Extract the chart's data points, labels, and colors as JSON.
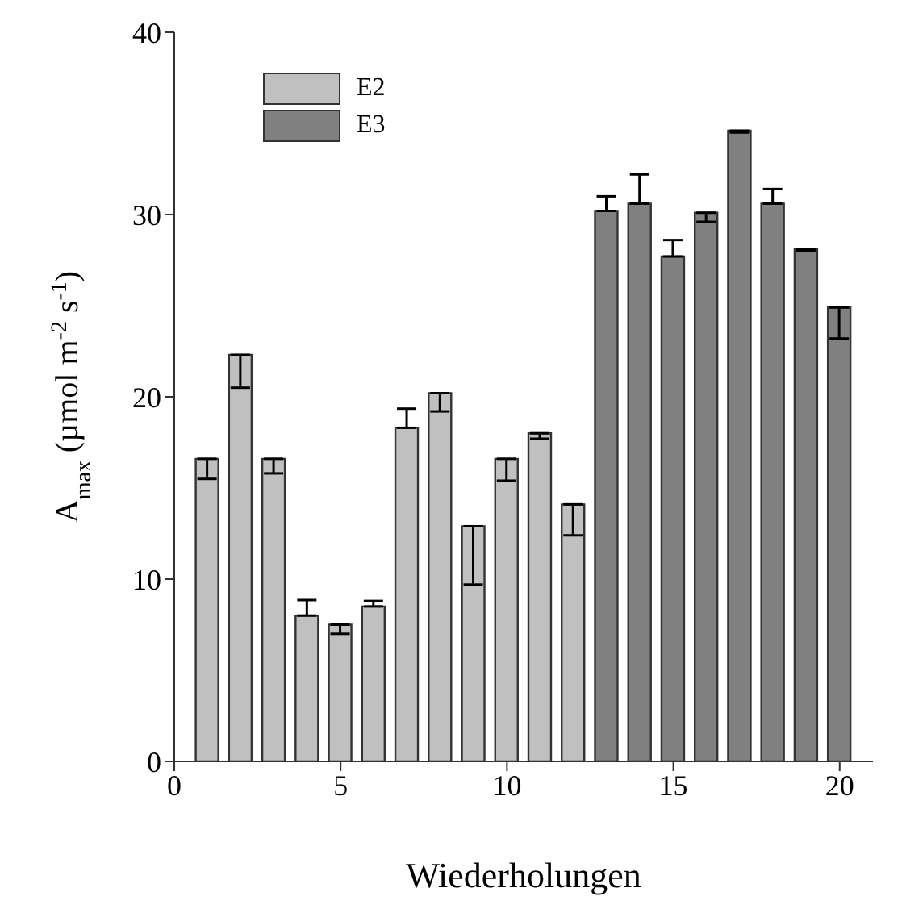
{
  "chart_data": {
    "type": "bar",
    "xlabel": "Wiederholungen",
    "ylabel": "A$_{max}$ (µmol m$^{-2}$ s$^{-1}$)",
    "xlim": [
      0,
      21
    ],
    "xticks": [
      0,
      5,
      10,
      15,
      20
    ],
    "ylim": [
      0,
      40
    ],
    "yticks": [
      0,
      10,
      20,
      30,
      40
    ],
    "legend": "top left",
    "series": [
      {
        "name": "E2",
        "color": "#c0c0c0",
        "x": [
          1,
          2,
          3,
          4,
          5,
          6,
          7,
          8,
          9,
          10,
          11,
          12
        ],
        "values": [
          16.6,
          22.3,
          16.6,
          8.0,
          7.5,
          8.5,
          18.3,
          20.2,
          12.9,
          16.6,
          18.0,
          14.1
        ],
        "errors": [
          [
            15.5,
            16.6
          ],
          [
            20.5,
            22.3
          ],
          [
            15.8,
            16.6
          ],
          [
            8.0,
            8.85
          ],
          [
            7.0,
            7.5
          ],
          [
            8.5,
            8.8
          ],
          [
            18.3,
            19.35
          ],
          [
            19.2,
            20.2
          ],
          [
            9.7,
            12.9
          ],
          [
            15.4,
            16.6
          ],
          [
            17.7,
            18.0
          ],
          [
            12.4,
            14.1
          ]
        ]
      },
      {
        "name": "E3",
        "color": "#808080",
        "x": [
          13,
          14,
          15,
          16,
          17,
          18,
          19,
          20
        ],
        "values": [
          30.2,
          30.6,
          27.7,
          30.1,
          34.6,
          30.6,
          28.1,
          24.9
        ],
        "errors": [
          [
            30.2,
            31.0
          ],
          [
            30.6,
            32.2
          ],
          [
            27.7,
            28.6
          ],
          [
            29.6,
            30.1
          ],
          [
            34.5,
            34.6
          ],
          [
            30.6,
            31.4
          ],
          [
            28.0,
            28.1
          ],
          [
            23.2,
            24.9
          ]
        ]
      }
    ]
  }
}
